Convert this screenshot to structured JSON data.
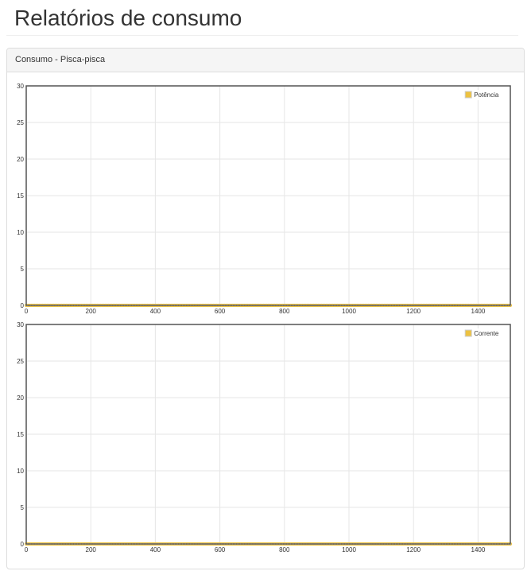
{
  "page": {
    "title": "Relatórios de consumo"
  },
  "panel": {
    "heading": "Consumo - Pisca-pisca"
  },
  "colors": {
    "series": "#edc240",
    "grid": "#e6e6e6",
    "axis_border": "#545454"
  },
  "chart_data": [
    {
      "type": "line",
      "title": "",
      "xlabel": "",
      "ylabel": "",
      "xlim": [
        0,
        1500
      ],
      "ylim": [
        0,
        30
      ],
      "x_ticks": [
        0,
        200,
        400,
        600,
        800,
        1000,
        1200,
        1400
      ],
      "y_ticks": [
        0,
        5,
        10,
        15,
        20,
        25,
        30
      ],
      "grid": true,
      "legend_position": "top-right",
      "series": [
        {
          "name": "Potência",
          "color": "#edc240",
          "x_range": [
            0,
            1500
          ],
          "y_constant": 0,
          "markers": true
        }
      ]
    },
    {
      "type": "line",
      "title": "",
      "xlabel": "",
      "ylabel": "",
      "xlim": [
        0,
        1500
      ],
      "ylim": [
        0,
        30
      ],
      "x_ticks": [
        0,
        200,
        400,
        600,
        800,
        1000,
        1200,
        1400
      ],
      "y_ticks": [
        0,
        5,
        10,
        15,
        20,
        25,
        30
      ],
      "grid": true,
      "legend_position": "top-right",
      "series": [
        {
          "name": "Corrente",
          "color": "#edc240",
          "x_range": [
            0,
            1500
          ],
          "y_constant": 0,
          "markers": true
        }
      ]
    }
  ]
}
